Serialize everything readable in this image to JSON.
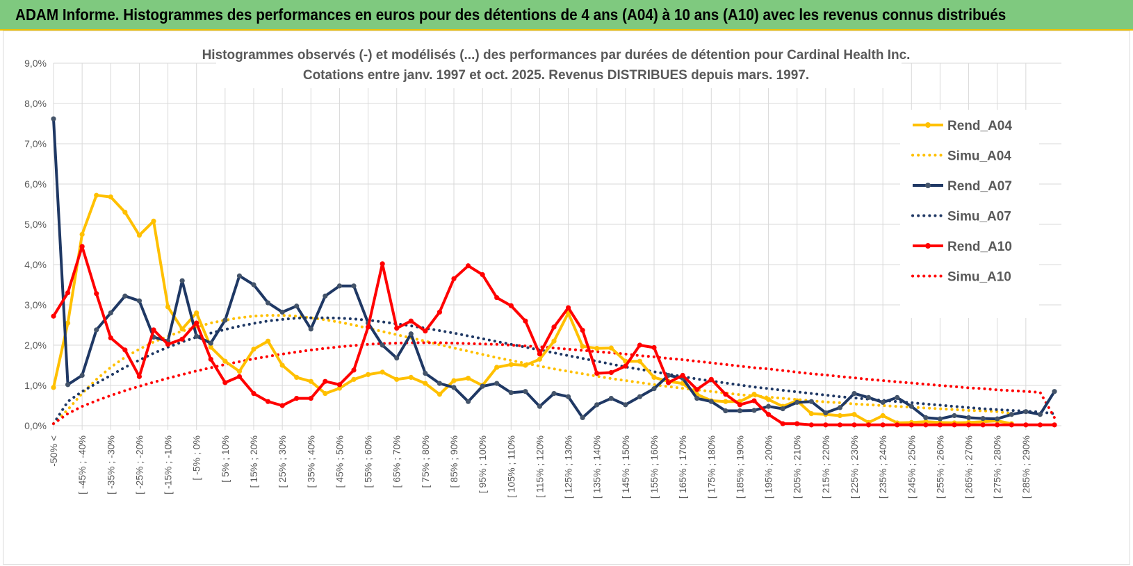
{
  "header": {
    "title": "ADAM Informe. Histogrammes des performances en euros pour des détentions de 4 ans (A04) à 10 ans (A10) avec les revenus connus distribués"
  },
  "colors": {
    "header_bg": "#7fc97f",
    "A04": "#ffc000",
    "A07": "#1f3864",
    "A10": "#ff0000"
  },
  "chart_data": {
    "type": "line",
    "title_line1": "Histogrammes observés (-) et modélisés (...) des performances par durées de détention pour Cardinal Health Inc.",
    "title_line2": "Cotations entre janv. 1997 et oct. 2025.  Revenus DISTRIBUES depuis mars. 1997.",
    "ylim": [
      0,
      9
    ],
    "yticks": [
      "0,0%",
      "1,0%",
      "2,0%",
      "3,0%",
      "4,0%",
      "5,0%",
      "6,0%",
      "7,0%",
      "8,0%",
      "9,0%"
    ],
    "grid": true,
    "legend_position": "right",
    "x_labels": [
      "-50% <",
      "[ -45% ; -40%",
      "[ -35% ; -30%",
      "[ -25% ; -20%",
      "[ -15% ; -10%",
      "[ -5% ; 0%",
      "[ 5% ; 10%",
      "[ 15% ; 20%",
      "[ 25% ; 30%",
      "[ 35% ; 40%",
      "[ 45% ; 50%",
      "[ 55% ; 60%",
      "[ 65% ; 70%",
      "[ 75% ; 80%",
      "[ 85% ; 90%",
      "[ 95% ; 100%",
      "[ 105% ; 110%",
      "[ 115% ; 120%",
      "[ 125% ; 130%",
      "[ 135% ; 140%",
      "[ 145% ; 150%",
      "[ 155% ; 160%",
      "[ 165% ; 170%",
      "[ 175% ; 180%",
      "[ 185% ; 190%",
      "[ 195% ; 200%",
      "[ 205% ; 210%",
      "[ 215% ; 220%",
      "[ 225% ; 230%",
      "[ 235% ; 240%",
      "[ 245% ; 250%",
      "[ 255% ; 260%",
      "[ 265% ; 270%",
      "[ 275% ; 280%",
      "[ 285% ; 290%"
    ],
    "series": [
      {
        "name": "Rend_A04",
        "style": "solid",
        "color": "#ffc000",
        "values": [
          0.95,
          2.55,
          4.75,
          5.72,
          5.68,
          5.3,
          4.73,
          5.08,
          2.95,
          2.4,
          2.8,
          1.95,
          1.6,
          1.35,
          1.9,
          2.1,
          1.5,
          1.2,
          1.1,
          0.8,
          0.93,
          1.15,
          1.27,
          1.33,
          1.15,
          1.2,
          1.05,
          0.78,
          1.12,
          1.18,
          1.0,
          1.45,
          1.52,
          1.5,
          1.65,
          2.1,
          2.8,
          1.97,
          1.92,
          1.93,
          1.6,
          1.6,
          1.2,
          1.1,
          1.05,
          0.78,
          0.62,
          0.6,
          0.6,
          0.78,
          0.65,
          0.48,
          0.62,
          0.3,
          0.28,
          0.25,
          0.28,
          0.08,
          0.25,
          0.07,
          0.08,
          0.1,
          0.08,
          0.07,
          0.08,
          0.1,
          0.12,
          0.05
        ]
      },
      {
        "name": "Simu_A04",
        "style": "dotted",
        "color": "#ffc000",
        "values": [
          0.05,
          0.4,
          0.8,
          1.15,
          1.45,
          1.7,
          1.9,
          2.08,
          2.22,
          2.35,
          2.45,
          2.55,
          2.62,
          2.68,
          2.72,
          2.74,
          2.74,
          2.72,
          2.68,
          2.63,
          2.57,
          2.5,
          2.42,
          2.34,
          2.26,
          2.18,
          2.1,
          2.01,
          1.93,
          1.85,
          1.77,
          1.69,
          1.62,
          1.55,
          1.48,
          1.41,
          1.35,
          1.29,
          1.23,
          1.17,
          1.12,
          1.07,
          1.02,
          0.97,
          0.93,
          0.89,
          0.85,
          0.81,
          0.77,
          0.74,
          0.71,
          0.68,
          0.65,
          0.62,
          0.59,
          0.57,
          0.54,
          0.52,
          0.5,
          0.48,
          0.46,
          0.44,
          0.42,
          0.4,
          0.38,
          0.37,
          0.35,
          0.3
        ]
      },
      {
        "name": "Rend_A07",
        "style": "solid",
        "color": "#1f3864",
        "values": [
          7.62,
          1.02,
          1.25,
          2.38,
          2.8,
          3.22,
          3.1,
          2.2,
          2.1,
          3.6,
          2.22,
          2.05,
          2.62,
          3.72,
          3.5,
          3.05,
          2.82,
          2.97,
          2.4,
          3.22,
          3.47,
          3.47,
          2.55,
          2.0,
          1.68,
          2.28,
          1.3,
          1.05,
          0.95,
          0.6,
          0.98,
          1.05,
          0.82,
          0.85,
          0.48,
          0.8,
          0.72,
          0.2,
          0.52,
          0.68,
          0.52,
          0.72,
          0.92,
          1.25,
          1.18,
          0.68,
          0.6,
          0.37,
          0.37,
          0.38,
          0.48,
          0.42,
          0.58,
          0.6,
          0.32,
          0.45,
          0.8,
          0.7,
          0.58,
          0.7,
          0.48,
          0.2,
          0.17,
          0.25,
          0.2,
          0.18,
          0.17,
          0.28,
          0.35,
          0.28,
          0.85
        ]
      },
      {
        "name": "Simu_A07",
        "style": "dotted",
        "color": "#1f3864",
        "values": [
          0.05,
          0.6,
          0.85,
          1.05,
          1.25,
          1.45,
          1.63,
          1.8,
          1.95,
          2.08,
          2.2,
          2.3,
          2.39,
          2.47,
          2.54,
          2.6,
          2.64,
          2.67,
          2.68,
          2.68,
          2.67,
          2.65,
          2.62,
          2.58,
          2.53,
          2.48,
          2.42,
          2.36,
          2.3,
          2.23,
          2.16,
          2.09,
          2.02,
          1.95,
          1.88,
          1.81,
          1.74,
          1.67,
          1.6,
          1.53,
          1.46,
          1.4,
          1.34,
          1.28,
          1.22,
          1.16,
          1.11,
          1.06,
          1.01,
          0.96,
          0.92,
          0.88,
          0.84,
          0.8,
          0.76,
          0.72,
          0.69,
          0.66,
          0.63,
          0.6,
          0.57,
          0.54,
          0.51,
          0.48,
          0.45,
          0.42,
          0.4,
          0.38,
          0.36,
          0.34,
          0.3
        ]
      },
      {
        "name": "Rend_A10",
        "style": "solid",
        "color": "#ff0000",
        "values": [
          2.72,
          3.3,
          4.45,
          3.28,
          2.18,
          1.88,
          1.22,
          2.38,
          2.02,
          2.15,
          2.55,
          1.65,
          1.07,
          1.22,
          0.8,
          0.6,
          0.5,
          0.68,
          0.68,
          1.1,
          1.02,
          1.38,
          2.45,
          4.02,
          2.42,
          2.6,
          2.35,
          2.82,
          3.65,
          3.97,
          3.75,
          3.18,
          2.98,
          2.6,
          1.78,
          2.45,
          2.93,
          2.37,
          1.3,
          1.32,
          1.48,
          2.0,
          1.94,
          1.07,
          1.25,
          0.9,
          1.15,
          0.78,
          0.52,
          0.62,
          0.28,
          0.05,
          0.05,
          0.02,
          0.02,
          0.02,
          0.02,
          0.02,
          0.02,
          0.02,
          0.02,
          0.02,
          0.02,
          0.02,
          0.02,
          0.02,
          0.02,
          0.02,
          0.02,
          0.02,
          0.02
        ]
      },
      {
        "name": "Simu_A10",
        "style": "dotted",
        "color": "#ff0000",
        "values": [
          0.05,
          0.3,
          0.48,
          0.62,
          0.75,
          0.87,
          0.98,
          1.08,
          1.18,
          1.27,
          1.36,
          1.44,
          1.52,
          1.59,
          1.66,
          1.72,
          1.78,
          1.83,
          1.88,
          1.92,
          1.96,
          1.99,
          2.02,
          2.04,
          2.05,
          2.06,
          2.06,
          2.06,
          2.05,
          2.04,
          2.03,
          2.02,
          2.0,
          1.98,
          1.96,
          1.93,
          1.9,
          1.87,
          1.84,
          1.81,
          1.78,
          1.74,
          1.71,
          1.67,
          1.64,
          1.6,
          1.56,
          1.52,
          1.48,
          1.44,
          1.41,
          1.37,
          1.33,
          1.29,
          1.26,
          1.22,
          1.19,
          1.15,
          1.12,
          1.09,
          1.06,
          1.03,
          1.0,
          0.97,
          0.94,
          0.92,
          0.89,
          0.87,
          0.85,
          0.83,
          0.2
        ]
      }
    ]
  }
}
